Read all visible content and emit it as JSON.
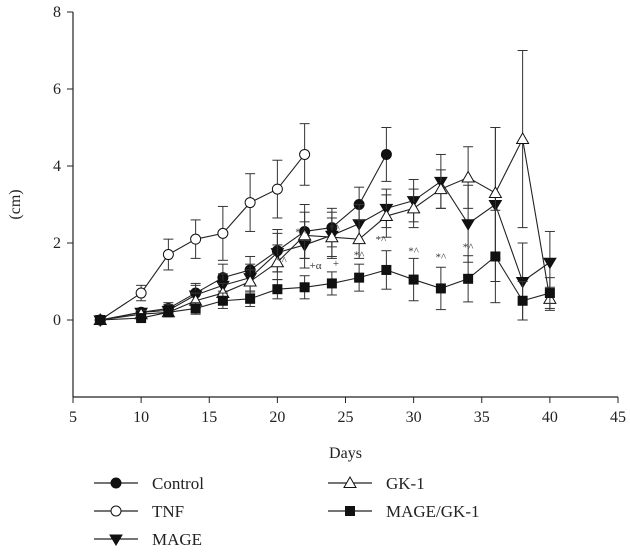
{
  "chart_data": {
    "type": "line",
    "title": "",
    "xlabel": "Days",
    "ylabel": "(cm)",
    "xlim": [
      5,
      45
    ],
    "ylim": [
      -2,
      8
    ],
    "xticks": [
      5,
      10,
      15,
      20,
      25,
      30,
      35,
      40,
      45
    ],
    "yticks": [
      0,
      2,
      4,
      6,
      8
    ],
    "grid": false,
    "legend_position": "bottom-left",
    "series": [
      {
        "name": "Control",
        "marker": "filled-circle",
        "x": [
          7,
          10,
          12,
          14,
          16,
          18,
          20,
          22,
          24,
          26,
          28
        ],
        "y": [
          0,
          0.2,
          0.3,
          0.7,
          1.1,
          1.3,
          1.8,
          2.3,
          2.4,
          3.0,
          4.3
        ],
        "err": [
          0,
          0.1,
          0.15,
          0.25,
          0.35,
          0.35,
          0.55,
          0.7,
          0.5,
          0.45,
          0.7
        ]
      },
      {
        "name": "TNF",
        "marker": "open-circle",
        "x": [
          7,
          10,
          12,
          14,
          16,
          18,
          20,
          22
        ],
        "y": [
          0,
          0.7,
          1.7,
          2.1,
          2.25,
          3.05,
          3.4,
          4.3
        ],
        "err": [
          0,
          0.2,
          0.4,
          0.5,
          0.7,
          0.75,
          0.75,
          0.8
        ]
      },
      {
        "name": "MAGE",
        "marker": "filled-triangle-down",
        "x": [
          7,
          10,
          12,
          14,
          16,
          18,
          20,
          22,
          24,
          26,
          28,
          30,
          32,
          34,
          36,
          38,
          40
        ],
        "y": [
          0,
          0.2,
          0.25,
          0.65,
          0.9,
          1.1,
          1.75,
          1.95,
          2.2,
          2.5,
          2.9,
          3.1,
          3.6,
          2.5,
          3.0,
          1.0,
          1.5
        ],
        "err": [
          0,
          0.1,
          0.15,
          0.25,
          0.3,
          0.35,
          0.5,
          0.6,
          0.6,
          0.5,
          0.5,
          0.55,
          0.7,
          1.0,
          2.0,
          1.0,
          0.8
        ]
      },
      {
        "name": "GK-1",
        "marker": "open-triangle-up",
        "x": [
          7,
          10,
          12,
          14,
          16,
          18,
          20,
          22,
          24,
          26,
          28,
          30,
          32,
          34,
          36,
          38,
          40
        ],
        "y": [
          0,
          0.15,
          0.2,
          0.5,
          0.7,
          1.0,
          1.5,
          2.2,
          2.15,
          2.1,
          2.7,
          2.9,
          3.4,
          3.7,
          3.3,
          4.7,
          0.55
        ],
        "err": [
          0,
          0.1,
          0.1,
          0.2,
          0.25,
          0.3,
          0.45,
          0.6,
          0.5,
          0.5,
          0.55,
          0.5,
          0.5,
          0.8,
          1.7,
          2.3,
          0.3
        ]
      },
      {
        "name": "MAGE/GK-1",
        "marker": "filled-square",
        "x": [
          7,
          10,
          12,
          14,
          16,
          18,
          20,
          22,
          24,
          26,
          28,
          30,
          32,
          34,
          36,
          38,
          40
        ],
        "y": [
          0,
          0.05,
          0.2,
          0.3,
          0.5,
          0.55,
          0.8,
          0.85,
          0.95,
          1.1,
          1.3,
          1.05,
          0.82,
          1.07,
          1.65,
          0.5,
          0.7
        ],
        "err": [
          0,
          0.05,
          0.1,
          0.15,
          0.2,
          0.2,
          0.25,
          0.3,
          0.3,
          0.35,
          0.5,
          0.55,
          0.55,
          0.6,
          1.2,
          0.5,
          0.4
        ]
      }
    ],
    "annotations": [
      {
        "text": "*^",
        "x": 20.3,
        "y": 1.45
      },
      {
        "text": "*^",
        "x": 21.7,
        "y": 2.2
      },
      {
        "text": "+α",
        "x": 22.8,
        "y": 1.32
      },
      {
        "text": "*^",
        "x": 24.2,
        "y": 2.3
      },
      {
        "text": "+",
        "x": 24.3,
        "y": 1.38
      },
      {
        "text": "*^",
        "x": 26.0,
        "y": 1.6
      },
      {
        "text": "*^",
        "x": 27.6,
        "y": 2.0
      },
      {
        "text": "*^",
        "x": 30.0,
        "y": 1.7
      },
      {
        "text": "*^",
        "x": 32.0,
        "y": 1.55
      },
      {
        "text": "*^",
        "x": 34.0,
        "y": 1.8
      }
    ]
  }
}
